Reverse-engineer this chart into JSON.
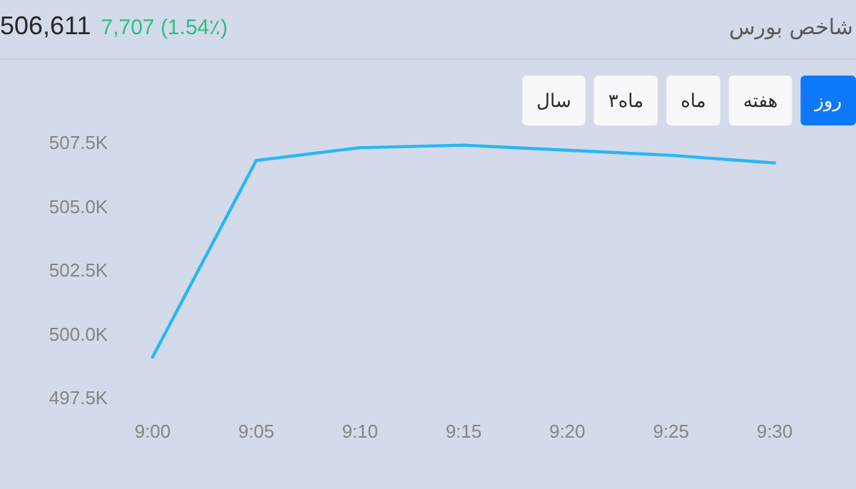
{
  "chart_data": {
    "type": "line",
    "title": "شاخص بورس",
    "subtitle": "506,611",
    "annotations": [
      "7,707 (1.54٪)",
      "روز",
      "هفته",
      "ماه",
      "۳ماه",
      "سال"
    ],
    "x": [
      9,
      9.0833,
      9.1667,
      9.25,
      9.3333,
      9.4167,
      9.5
    ],
    "series": [
      {
        "color": "#29b6f6",
        "values": [
          499100,
          506800,
          507300,
          507400,
          507200,
          507000,
          506700
        ]
      }
    ],
    "xlim": [
      9,
      9.5
    ],
    "xticks": [
      {
        "value": 9,
        "label": "9:00"
      },
      {
        "value": 9.0833,
        "label": "9:05"
      },
      {
        "value": 9.1667,
        "label": "9:10"
      },
      {
        "value": 9.25,
        "label": "9:15"
      },
      {
        "value": 9.3333,
        "label": "9:20"
      },
      {
        "value": 9.4167,
        "label": "9:25"
      },
      {
        "value": 9.5,
        "label": "9:30"
      }
    ],
    "ylim": [
      497500,
      507500
    ],
    "yticks": [
      {
        "value": 497500,
        "label": "497.5K"
      },
      {
        "value": 500000,
        "label": "500.0K"
      },
      {
        "value": 502500,
        "label": "502.5K"
      },
      {
        "value": 505000,
        "label": "505.0K"
      },
      {
        "value": 507500,
        "label": "507.5K"
      }
    ]
  }
}
